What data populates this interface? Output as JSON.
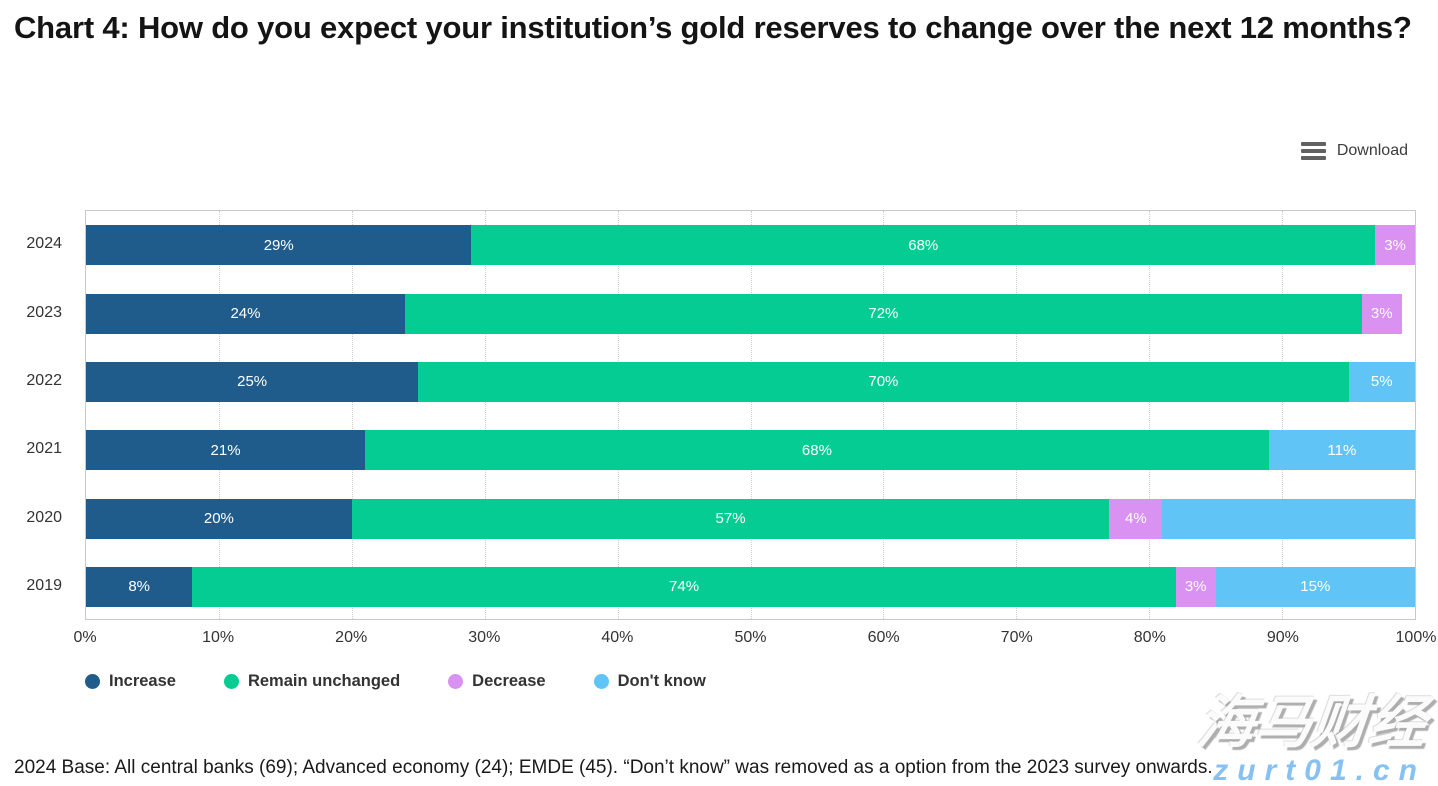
{
  "title": "Chart 4: How do you expect your institution’s gold reserves to change over the next 12 months?",
  "toolbar": {
    "download_label": "Download"
  },
  "chart_data": {
    "type": "bar",
    "orientation": "horizontal-stacked",
    "title": "Chart 4: How do you expect your institution’s gold reserves to change over the next 12 months?",
    "categories": [
      "2024",
      "2023",
      "2022",
      "2021",
      "2020",
      "2019"
    ],
    "series": [
      {
        "name": "Increase",
        "color": "#1f5c8b",
        "values": [
          29,
          24,
          25,
          21,
          20,
          8
        ],
        "labels": [
          "29%",
          "24%",
          "25%",
          "21%",
          "20%",
          "8%"
        ]
      },
      {
        "name": "Remain unchanged",
        "color": "#04cc92",
        "values": [
          68,
          72,
          70,
          68,
          57,
          74
        ],
        "labels": [
          "68%",
          "72%",
          "70%",
          "68%",
          "57%",
          "74%"
        ]
      },
      {
        "name": "Decrease",
        "color": "#d991f2",
        "values": [
          3,
          3,
          0,
          0,
          4,
          3
        ],
        "labels": [
          "3%",
          "3%",
          "",
          "",
          "4%",
          "3%"
        ]
      },
      {
        "name": "Don't know",
        "color": "#61c4f7",
        "values": [
          0,
          0,
          5,
          11,
          19,
          15
        ],
        "labels": [
          "",
          "",
          "5%",
          "11%",
          "",
          "15%"
        ]
      }
    ],
    "x_axis": {
      "min": 0,
      "max": 100,
      "tick_labels": [
        "0%",
        "10%",
        "20%",
        "30%",
        "40%",
        "50%",
        "60%",
        "70%",
        "80%",
        "90%",
        "100%"
      ],
      "grid": "dotted"
    },
    "legend": {
      "position": "bottom",
      "entries": [
        "Increase",
        "Remain unchanged",
        "Decrease",
        "Don't know"
      ]
    }
  },
  "footnote": "2024 Base: All central banks (69); Advanced economy (24); EMDE (45). “Don’t know” was removed as a option from the 2023 survey onwards.",
  "watermark": {
    "text": "海马财经",
    "domain": "zurt01.cn"
  }
}
